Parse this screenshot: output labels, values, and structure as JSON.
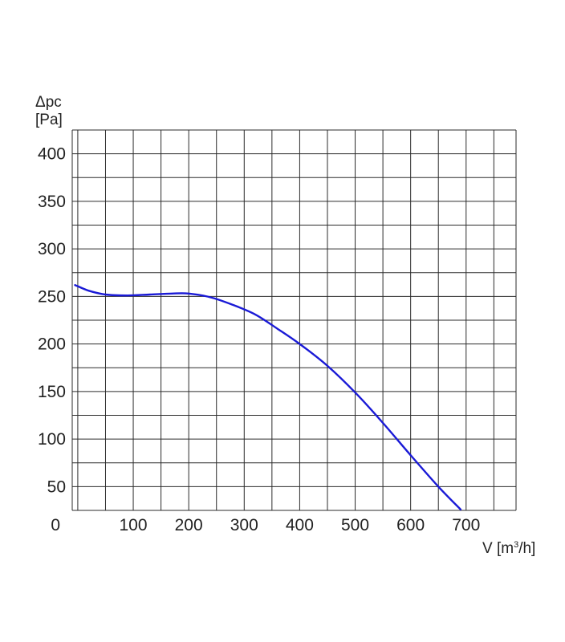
{
  "chart_data": {
    "type": "line",
    "ylabel_line1": "Δpc",
    "ylabel_line2": "[Pa]",
    "xlabel_main": "V [m",
    "xlabel_sup": "3",
    "xlabel_end": "/h]",
    "origin_label": "0",
    "xlim": [
      -10,
      790
    ],
    "ylim": [
      25,
      425
    ],
    "x_minor_step": 50,
    "y_minor_step": 25,
    "x_ticks": [
      {
        "value": 100,
        "label": "100"
      },
      {
        "value": 200,
        "label": "200"
      },
      {
        "value": 300,
        "label": "300"
      },
      {
        "value": 400,
        "label": "400"
      },
      {
        "value": 500,
        "label": "500"
      },
      {
        "value": 600,
        "label": "600"
      },
      {
        "value": 700,
        "label": "700"
      }
    ],
    "y_ticks": [
      {
        "value": 50,
        "label": "50"
      },
      {
        "value": 100,
        "label": "100"
      },
      {
        "value": 150,
        "label": "150"
      },
      {
        "value": 200,
        "label": "200"
      },
      {
        "value": 250,
        "label": "250"
      },
      {
        "value": 300,
        "label": "300"
      },
      {
        "value": 350,
        "label": "350"
      },
      {
        "value": 400,
        "label": "400"
      }
    ],
    "grid": true,
    "series": [
      {
        "color": "#1a1ad6",
        "x": [
          -5,
          20,
          50,
          90,
          130,
          170,
          200,
          240,
          280,
          320,
          360,
          400,
          450,
          500,
          550,
          600,
          650,
          690
        ],
        "y": [
          262,
          256,
          252,
          251,
          252,
          253,
          253,
          249,
          241,
          231,
          216,
          200,
          177,
          149,
          117,
          83,
          50,
          26
        ]
      }
    ]
  }
}
